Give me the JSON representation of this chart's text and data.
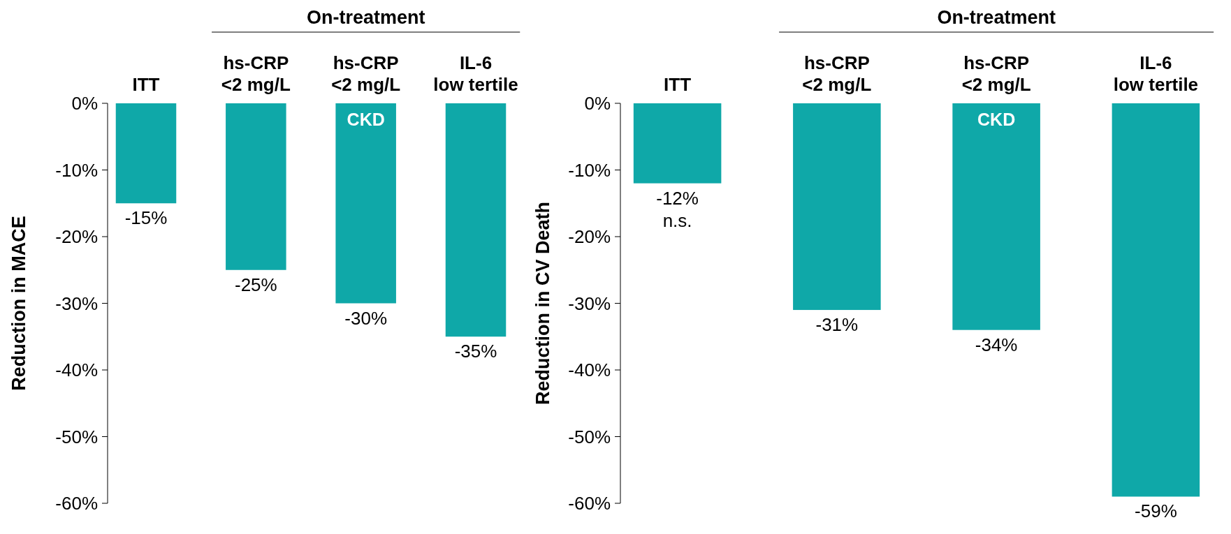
{
  "chart_data": [
    {
      "type": "bar",
      "ylabel": "Reduction in MACE",
      "categories": [
        "ITT",
        "hs-CRP\n<2 mg/L",
        "hs-CRP\n<2 mg/L",
        "IL-6\nlow tertile"
      ],
      "values": [
        -15,
        -25,
        -30,
        -35
      ],
      "value_labels": [
        "-15%",
        "-25%",
        "-30%",
        "-35%"
      ],
      "color": "#0fa8a8",
      "ylim": [
        -60,
        0
      ],
      "yticks": [
        {
          "value": 0,
          "label": "0%"
        },
        {
          "value": -10,
          "label": "-10%"
        },
        {
          "value": -20,
          "label": "-20%"
        },
        {
          "value": -30,
          "label": "-30%"
        },
        {
          "value": -40,
          "label": "-40%"
        },
        {
          "value": -50,
          "label": "-50%"
        },
        {
          "value": -60,
          "label": "-60%"
        }
      ],
      "annotations": [
        "On-treatment",
        "CKD"
      ],
      "grid": false
    },
    {
      "type": "bar",
      "ylabel": "Reduction in CV Death",
      "categories": [
        "ITT",
        "hs-CRP\n<2 mg/L",
        "hs-CRP\n<2 mg/L",
        "IL-6\nlow tertile"
      ],
      "values": [
        -12,
        -31,
        -34,
        -59
      ],
      "value_labels": [
        "-12%",
        "-31%",
        "-34%",
        "-59%"
      ],
      "color": "#0fa8a8",
      "ylim": [
        -60,
        0
      ],
      "yticks": [
        {
          "value": 0,
          "label": "0%"
        },
        {
          "value": -10,
          "label": "-10%"
        },
        {
          "value": -20,
          "label": "-20%"
        },
        {
          "value": -30,
          "label": "-30%"
        },
        {
          "value": -40,
          "label": "-40%"
        },
        {
          "value": -50,
          "label": "-50%"
        },
        {
          "value": -60,
          "label": "-60%"
        }
      ],
      "annotations": [
        "On-treatment",
        "CKD",
        "n.s."
      ],
      "grid": false
    }
  ]
}
